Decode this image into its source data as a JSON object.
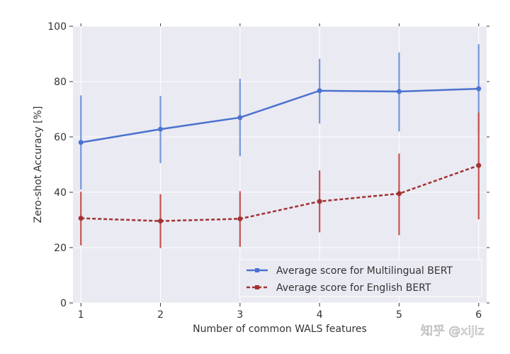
{
  "chart_data": {
    "type": "line",
    "title": "",
    "xlabel": "Number of common WALS features",
    "ylabel": "Zero-shot Accuracy [%]",
    "x": [
      1,
      2,
      3,
      4,
      5,
      6
    ],
    "xlim": [
      0.9,
      6.1
    ],
    "ylim": [
      0,
      100
    ],
    "xticks": [
      "1",
      "2",
      "3",
      "4",
      "5",
      "6"
    ],
    "yticks": [
      "0",
      "20",
      "40",
      "60",
      "80",
      "100"
    ],
    "grid": true,
    "legend_position": "lower-right",
    "series": [
      {
        "name": "Average score for Multilingual BERT",
        "color": "#4c72d0",
        "linestyle": "solid",
        "values": [
          58.0,
          62.8,
          67.0,
          76.7,
          76.4,
          77.4
        ],
        "error_low": [
          41.0,
          50.5,
          53.0,
          64.8,
          62.0,
          61.5
        ],
        "error_high": [
          75.0,
          74.8,
          81.0,
          88.2,
          90.5,
          93.5
        ]
      },
      {
        "name": "Average score for English BERT",
        "color": "#a23232",
        "linestyle": "dashed",
        "values": [
          30.6,
          29.6,
          30.4,
          36.7,
          39.5,
          49.7
        ],
        "error_low": [
          20.8,
          19.8,
          20.3,
          25.5,
          24.5,
          30.2
        ],
        "error_high": [
          40.2,
          39.3,
          40.4,
          47.9,
          54.0,
          68.8
        ]
      }
    ]
  },
  "watermark": "知乎 @xijiz"
}
